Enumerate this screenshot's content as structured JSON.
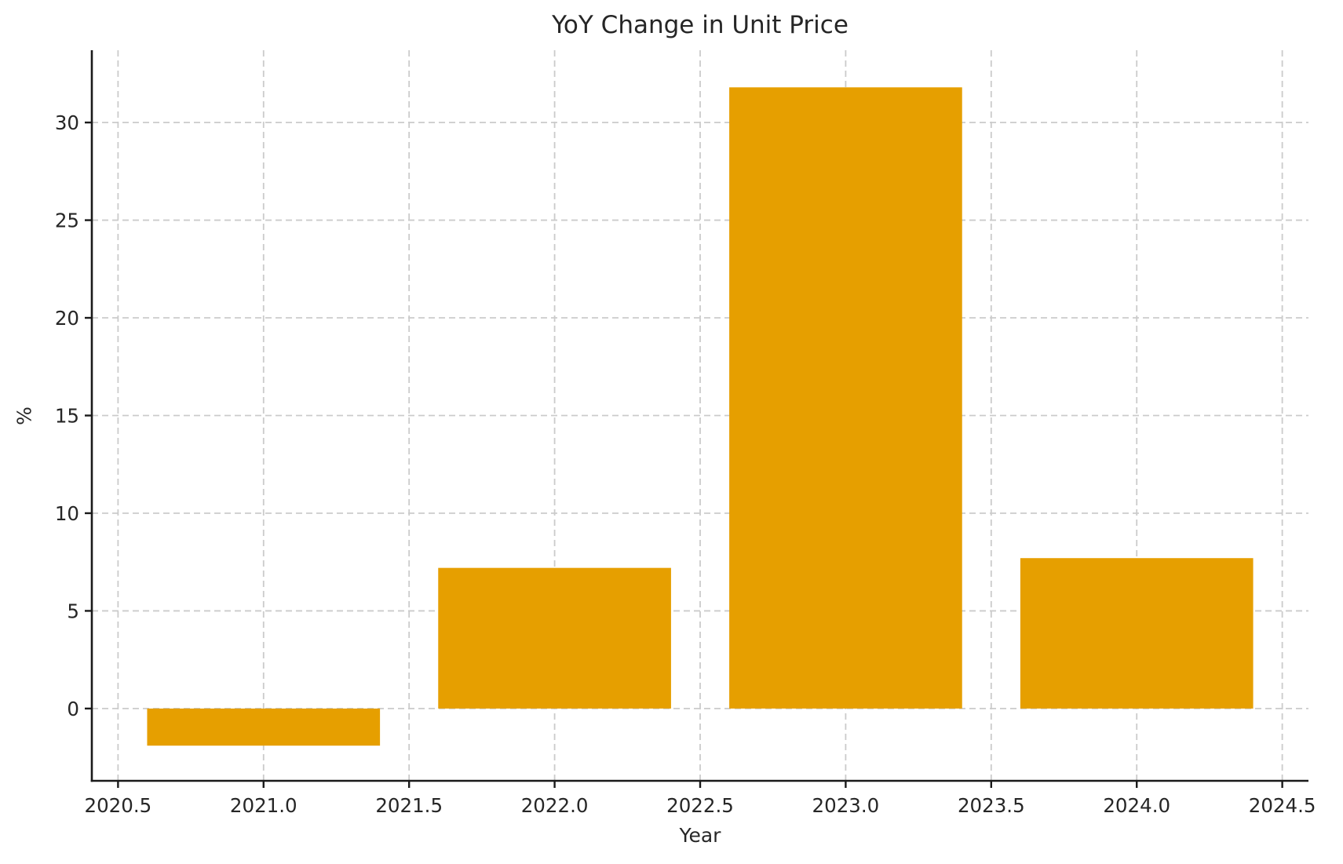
{
  "chart_data": {
    "type": "bar",
    "title": "YoY Change in Unit Price",
    "xlabel": "Year",
    "ylabel": "%",
    "categories": [
      2021,
      2022,
      2023,
      2024
    ],
    "values": [
      -1.9,
      7.2,
      31.8,
      7.7
    ],
    "bar_width": 0.8,
    "bar_color": "#E69F00",
    "baseline": 0,
    "xlim": [
      2020.41,
      2024.59
    ],
    "ylim": [
      -3.7,
      33.7
    ],
    "xticks": [
      {
        "value": 2020.5,
        "label": "2020.5"
      },
      {
        "value": 2021.0,
        "label": "2021.0"
      },
      {
        "value": 2021.5,
        "label": "2021.5"
      },
      {
        "value": 2022.0,
        "label": "2022.0"
      },
      {
        "value": 2022.5,
        "label": "2022.5"
      },
      {
        "value": 2023.0,
        "label": "2023.0"
      },
      {
        "value": 2023.5,
        "label": "2023.5"
      },
      {
        "value": 2024.0,
        "label": "2024.0"
      },
      {
        "value": 2024.5,
        "label": "2024.5"
      }
    ],
    "yticks": [
      {
        "value": 0,
        "label": "0"
      },
      {
        "value": 5,
        "label": "5"
      },
      {
        "value": 10,
        "label": "10"
      },
      {
        "value": 15,
        "label": "15"
      },
      {
        "value": 20,
        "label": "20"
      },
      {
        "value": 25,
        "label": "25"
      },
      {
        "value": 30,
        "label": "30"
      }
    ],
    "grid": {
      "show": true,
      "style": "dashed",
      "color": "#cbcbcb"
    },
    "legend": {
      "show": false
    },
    "axis_color": "#1a1a1a",
    "text_color": "#262626",
    "background_color": "#ffffff"
  }
}
